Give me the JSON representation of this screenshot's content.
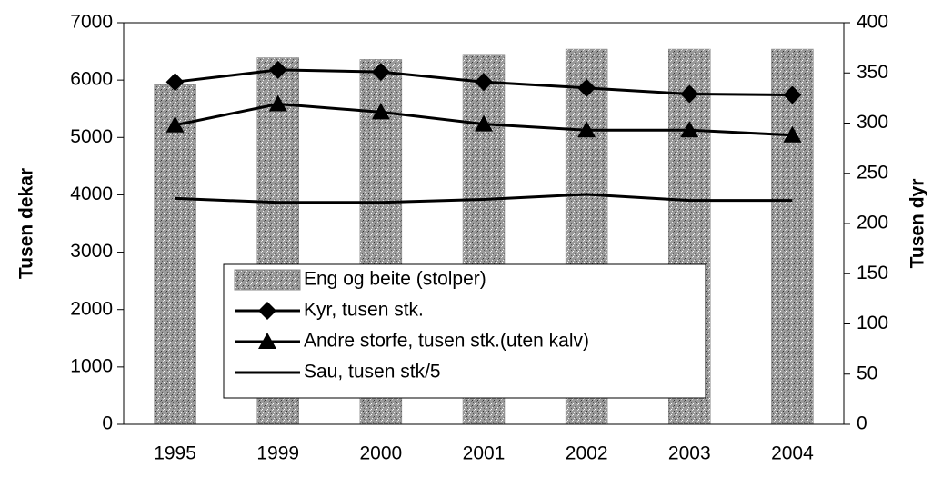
{
  "chart_data": {
    "type": "bar-line",
    "categories": [
      "1995",
      "1999",
      "2000",
      "2001",
      "2002",
      "2003",
      "2004"
    ],
    "ylabel": "Tusen dekar",
    "y2label": "Tusen dyr",
    "ylim": [
      0,
      7000
    ],
    "yticks": [
      0,
      1000,
      2000,
      3000,
      4000,
      5000,
      6000,
      7000
    ],
    "y2lim": [
      0,
      400
    ],
    "y2ticks": [
      0,
      50,
      100,
      150,
      200,
      250,
      300,
      350,
      400
    ],
    "series": [
      {
        "name": "Eng og beite (stolper)",
        "kind": "bar",
        "color": "#9a9a9a",
        "values": [
          5920,
          6390,
          6360,
          6450,
          6540,
          6540,
          6540
        ]
      },
      {
        "name": "Kyr, tusen stk.",
        "kind": "line",
        "axis": "y2",
        "marker": "diamond",
        "color": "#000000",
        "values": [
          341,
          353,
          351,
          341,
          335,
          329,
          328
        ]
      },
      {
        "name": "Andre storfe, tusen stk.(uten kalv)",
        "kind": "line",
        "axis": "y2",
        "marker": "triangle",
        "color": "#000000",
        "values": [
          298,
          319,
          311,
          299,
          293,
          293,
          288
        ]
      },
      {
        "name": "Sau, tusen stk/5",
        "kind": "line",
        "axis": "y2",
        "color": "#000000",
        "values": [
          225,
          221,
          221,
          224,
          229,
          223,
          223
        ]
      }
    ]
  }
}
